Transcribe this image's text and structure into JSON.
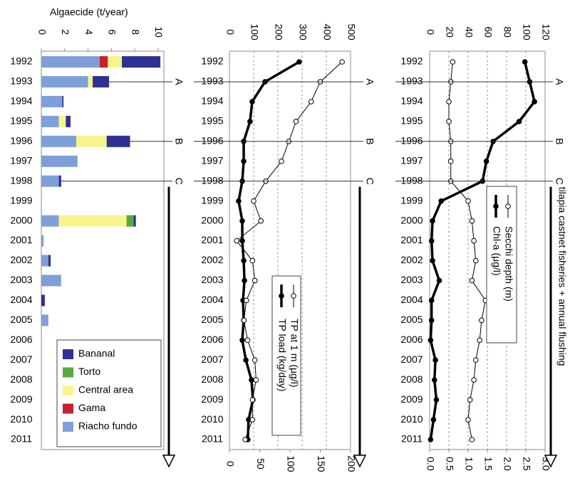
{
  "chart_data": [
    {
      "type": "bar",
      "orientation": "horizontal",
      "stacked": true,
      "x_label": "Algaecide (t/year)",
      "categories": [
        "1992",
        "1993",
        "1994",
        "1995",
        "1996",
        "1997",
        "1998",
        "1999",
        "2000",
        "2001",
        "2002",
        "2003",
        "2004",
        "2005",
        "2006",
        "2007",
        "2008",
        "2009",
        "2010",
        "2011"
      ],
      "series": [
        {
          "name": "Riacho fundo",
          "color": "#7f9fd9",
          "values": [
            5.0,
            4.0,
            1.8,
            1.5,
            3.0,
            3.1,
            1.5,
            0,
            1.5,
            0.2,
            0.6,
            1.7,
            0,
            0.6,
            0,
            0,
            0,
            0,
            0,
            0
          ]
        },
        {
          "name": "Gama",
          "color": "#c8202f",
          "values": [
            0.7,
            0,
            0,
            0,
            0,
            0,
            0,
            0,
            0,
            0,
            0,
            0,
            0,
            0,
            0,
            0,
            0,
            0,
            0,
            0
          ]
        },
        {
          "name": "Central area",
          "color": "#f8f48c",
          "values": [
            1.2,
            0.4,
            0,
            0.6,
            2.6,
            0,
            0,
            0,
            5.8,
            0,
            0,
            0,
            0,
            0,
            0,
            0,
            0,
            0,
            0,
            0
          ]
        },
        {
          "name": "Torto",
          "color": "#5aa83c",
          "values": [
            0,
            0,
            0,
            0,
            0,
            0,
            0,
            0,
            0.6,
            0,
            0,
            0,
            0,
            0,
            0,
            0,
            0,
            0,
            0,
            0
          ]
        },
        {
          "name": "Bananal",
          "color": "#2e3192",
          "values": [
            3.3,
            1.4,
            0.1,
            0.4,
            2.0,
            0,
            0.2,
            0,
            0.2,
            0,
            0.2,
            0,
            0.3,
            0,
            0,
            0,
            0,
            0,
            0,
            0
          ]
        }
      ],
      "xlim": [
        0,
        10.5
      ],
      "xticks": [
        0,
        2,
        4,
        6,
        8,
        10
      ],
      "markers": [
        {
          "label": "A",
          "year": "1993"
        },
        {
          "label": "B",
          "year": "1996"
        },
        {
          "label": "C",
          "year": "1998"
        }
      ]
    },
    {
      "type": "line",
      "categories": [
        "1992",
        "1993",
        "1994",
        "1995",
        "1996",
        "1997",
        "1998",
        "1999",
        "2000",
        "2001",
        "2002",
        "2003",
        "2004",
        "2005",
        "2006",
        "2007",
        "2008",
        "2009",
        "2010",
        "2011"
      ],
      "series": [
        {
          "name": "TP load (kg/day)",
          "color": "#000000",
          "marker": "filled",
          "values": [
            288,
            147,
            94,
            85,
            59,
            59,
            53,
            38,
            53,
            53,
            59,
            62,
            56,
            59,
            53,
            68,
            91,
            97,
            79,
            76
          ]
        },
        {
          "name": "TP at 1 m (µg/l)",
          "color": "#000000",
          "marker": "open",
          "axis": "x2",
          "values": [
            186,
            150,
            135,
            110,
            98,
            86,
            60,
            40,
            52,
            12,
            38,
            42,
            28,
            24,
            30,
            42,
            44,
            38,
            38,
            26
          ]
        }
      ],
      "xlim": [
        0,
        500
      ],
      "xticks": [
        0,
        100,
        200,
        300,
        400,
        500
      ],
      "x2lim": [
        0,
        200
      ],
      "x2ticks": [
        0,
        50,
        100,
        150,
        200
      ],
      "grid": true,
      "markers": [
        {
          "label": "A",
          "year": "1993"
        },
        {
          "label": "B",
          "year": "1996"
        },
        {
          "label": "C",
          "year": "1998"
        }
      ]
    },
    {
      "type": "line",
      "categories": [
        "1992",
        "1993",
        "1994",
        "1995",
        "1996",
        "1997",
        "1998",
        "1999",
        "2000",
        "2001",
        "2002",
        "2003",
        "2004",
        "2005",
        "2006",
        "2007",
        "2008",
        "2009",
        "2010",
        "2011"
      ],
      "series": [
        {
          "name": "Chl-a (µg/l)",
          "color": "#000000",
          "marker": "filled",
          "values": [
            99,
            104,
            109,
            93,
            66,
            59,
            55,
            12,
            3,
            2,
            3,
            10,
            2,
            2,
            1,
            6,
            5,
            7,
            4,
            1
          ]
        },
        {
          "name": "Secchi depth (m)",
          "color": "#000000",
          "marker": "open",
          "axis": "x2",
          "values": [
            0.6,
            0.55,
            0.5,
            0.5,
            0.55,
            0.55,
            0.55,
            1.0,
            1.1,
            1.15,
            1.2,
            1.1,
            1.45,
            1.35,
            1.3,
            1.2,
            1.15,
            1.05,
            1.0,
            1.1
          ]
        }
      ],
      "xlim": [
        0,
        120
      ],
      "xticks": [
        0,
        20,
        40,
        60,
        80,
        100,
        120
      ],
      "x2lim": [
        0,
        3
      ],
      "x2ticks": [
        {
          "value": 0,
          "label": "0.0"
        },
        {
          "value": 0.5,
          "label": "0.5"
        },
        {
          "value": 1,
          "label": "1.0"
        },
        {
          "value": 1.5,
          "label": "1.5"
        },
        {
          "value": 2,
          "label": "2.0"
        },
        {
          "value": 2.5,
          "label": "2.5"
        },
        {
          "value": 3,
          "label": "3.0"
        }
      ],
      "grid": true,
      "markers": [
        {
          "label": "A",
          "year": "1993"
        },
        {
          "label": "B",
          "year": "1996"
        },
        {
          "label": "C",
          "year": "1998"
        }
      ],
      "annotation": "tilapia castnet fisheries + annual flushing"
    }
  ]
}
